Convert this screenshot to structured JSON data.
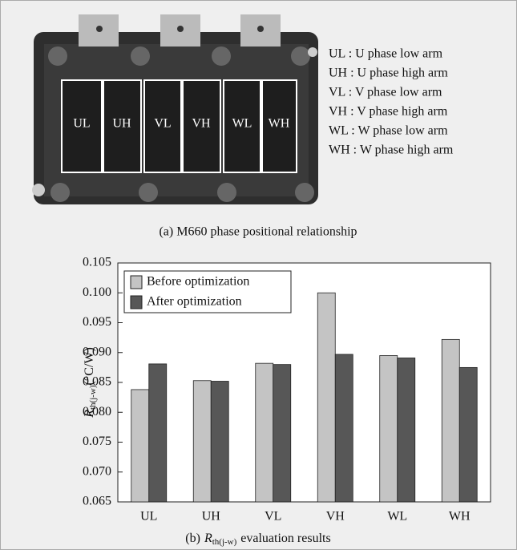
{
  "figure_a": {
    "regions": [
      "UL",
      "UH",
      "VL",
      "VH",
      "WL",
      "WH"
    ],
    "legend": [
      "UL : U phase low arm",
      "UH : U phase high arm",
      "VL : V phase low arm",
      "VH : V phase high arm",
      "WL : W phase low arm",
      "WH : W phase high arm"
    ],
    "caption": "(a) M660 phase positional relationship"
  },
  "chart_data": {
    "type": "bar",
    "y_label": {
      "symbol": "R",
      "subscript": "th(j-w)",
      "unit": "(°C/W)"
    },
    "caption": {
      "prefix": "(b)",
      "symbol": "R",
      "subscript": "th(j-w)",
      "suffix": "evaluation results"
    },
    "categories": [
      "UL",
      "UH",
      "VL",
      "VH",
      "WL",
      "WH"
    ],
    "series": [
      {
        "name": "Before optimization",
        "color": "#c4c4c4",
        "values": [
          0.0838,
          0.0853,
          0.0882,
          0.1,
          0.0895,
          0.0922
        ]
      },
      {
        "name": "After optimization",
        "color": "#575757",
        "values": [
          0.0881,
          0.0852,
          0.088,
          0.0897,
          0.0891,
          0.0875
        ]
      }
    ],
    "ylim": [
      0.065,
      0.105
    ],
    "yticks": [
      0.065,
      {
        "value": 0.07,
        "label": "0.070"
      },
      0.075,
      {
        "value": 0.08,
        "label": "0.080"
      },
      0.085,
      {
        "value": 0.09,
        "label": "0.090"
      },
      0.095,
      {
        "value": 0.1,
        "label": "0.100"
      },
      0.105
    ],
    "grid": false,
    "legend_position": "upper-left"
  }
}
